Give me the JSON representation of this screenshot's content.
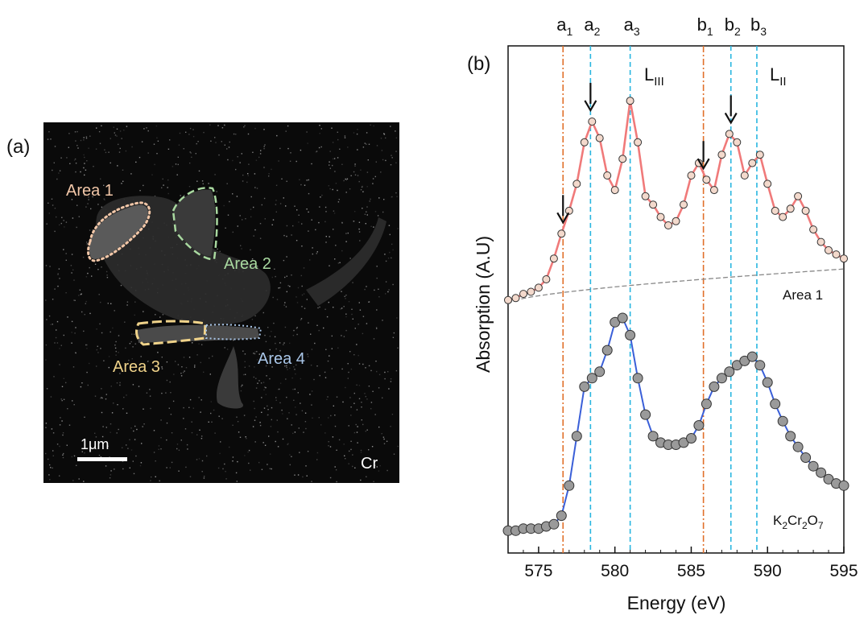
{
  "panel_a": {
    "label": "(a)",
    "element": "Cr",
    "scale_bar": "1μm",
    "areas": [
      {
        "label": "Area 1",
        "color": "#f2c7a8"
      },
      {
        "label": "Area 2",
        "color": "#a9d9a0"
      },
      {
        "label": "Area 3",
        "color": "#f0d38a"
      },
      {
        "label": "Area 4",
        "color": "#a9c6e8"
      }
    ]
  },
  "panel_b": {
    "label": "(b)",
    "edge_labels": {
      "l3": "L",
      "l3_sub": "III",
      "l2": "L",
      "l2_sub": "II"
    },
    "peak_labels": [
      {
        "base": "a",
        "sub": "1",
        "energy": 576.6,
        "style": "dashdot",
        "color": "#e0702a"
      },
      {
        "base": "a",
        "sub": "2",
        "energy": 578.4,
        "style": "dashed",
        "color": "#29b6e0"
      },
      {
        "base": "a",
        "sub": "3",
        "energy": 581.0,
        "style": "dashed",
        "color": "#29b6e0"
      },
      {
        "base": "b",
        "sub": "1",
        "energy": 585.8,
        "style": "dashdot",
        "color": "#e0702a"
      },
      {
        "base": "b",
        "sub": "2",
        "energy": 587.6,
        "style": "dashed",
        "color": "#29b6e0"
      },
      {
        "base": "b",
        "sub": "3",
        "energy": 589.3,
        "style": "dashed",
        "color": "#29b6e0"
      }
    ],
    "arrows_at": [
      576.6,
      578.4,
      585.8,
      587.6
    ],
    "series_labels": {
      "area1": "Area 1",
      "ref_base": "K",
      "ref_s1": "2",
      "ref_m1": "Cr",
      "ref_s2": "2",
      "ref_m2": "O",
      "ref_s3": "7"
    }
  },
  "chart_data": {
    "type": "line",
    "xlabel": "Energy (eV)",
    "ylabel": "Absorption (A.U)",
    "xlim": [
      573,
      595
    ],
    "xticks": [
      575,
      580,
      585,
      590,
      595
    ],
    "series": [
      {
        "name": "Area 1",
        "line_color": "#f07a7a",
        "marker": "open-circle",
        "x": [
          573.0,
          573.5,
          574.0,
          574.5,
          575.0,
          575.5,
          576.0,
          576.5,
          577.0,
          577.5,
          578.0,
          578.5,
          579.0,
          579.5,
          580.0,
          580.5,
          581.0,
          581.5,
          582.0,
          582.5,
          583.0,
          583.5,
          584.0,
          584.5,
          585.0,
          585.5,
          586.0,
          586.5,
          587.0,
          587.5,
          588.0,
          588.5,
          589.0,
          589.5,
          590.0,
          590.5,
          591.0,
          591.5,
          592.0,
          592.5,
          593.0,
          593.5,
          594.0,
          594.5,
          595.0
        ],
        "y": [
          0.02,
          0.03,
          0.05,
          0.06,
          0.08,
          0.12,
          0.22,
          0.34,
          0.45,
          0.58,
          0.78,
          0.88,
          0.8,
          0.62,
          0.55,
          0.7,
          0.98,
          0.78,
          0.52,
          0.48,
          0.42,
          0.38,
          0.4,
          0.48,
          0.62,
          0.68,
          0.6,
          0.55,
          0.72,
          0.82,
          0.78,
          0.62,
          0.68,
          0.72,
          0.58,
          0.45,
          0.42,
          0.46,
          0.52,
          0.45,
          0.36,
          0.3,
          0.26,
          0.24,
          0.22
        ]
      },
      {
        "name": "K2Cr2O7",
        "line_color": "#3a5fd8",
        "marker": "filled-circle",
        "x": [
          573.0,
          573.5,
          574.0,
          574.5,
          575.0,
          575.5,
          576.0,
          576.5,
          577.0,
          577.5,
          578.0,
          578.5,
          579.0,
          579.5,
          580.0,
          580.5,
          581.0,
          581.5,
          582.0,
          582.5,
          583.0,
          583.5,
          584.0,
          584.5,
          585.0,
          585.5,
          586.0,
          586.5,
          587.0,
          587.5,
          588.0,
          588.5,
          589.0,
          589.5,
          590.0,
          590.5,
          591.0,
          591.5,
          592.0,
          592.5,
          593.0,
          593.5,
          594.0,
          594.5,
          595.0
        ],
        "y": [
          0.01,
          0.01,
          0.02,
          0.02,
          0.02,
          0.03,
          0.04,
          0.08,
          0.22,
          0.45,
          0.68,
          0.72,
          0.75,
          0.85,
          0.98,
          1.0,
          0.92,
          0.72,
          0.55,
          0.45,
          0.42,
          0.41,
          0.41,
          0.42,
          0.44,
          0.5,
          0.6,
          0.68,
          0.72,
          0.75,
          0.78,
          0.8,
          0.82,
          0.78,
          0.7,
          0.6,
          0.52,
          0.45,
          0.4,
          0.35,
          0.31,
          0.28,
          0.25,
          0.23,
          0.22
        ]
      }
    ]
  }
}
